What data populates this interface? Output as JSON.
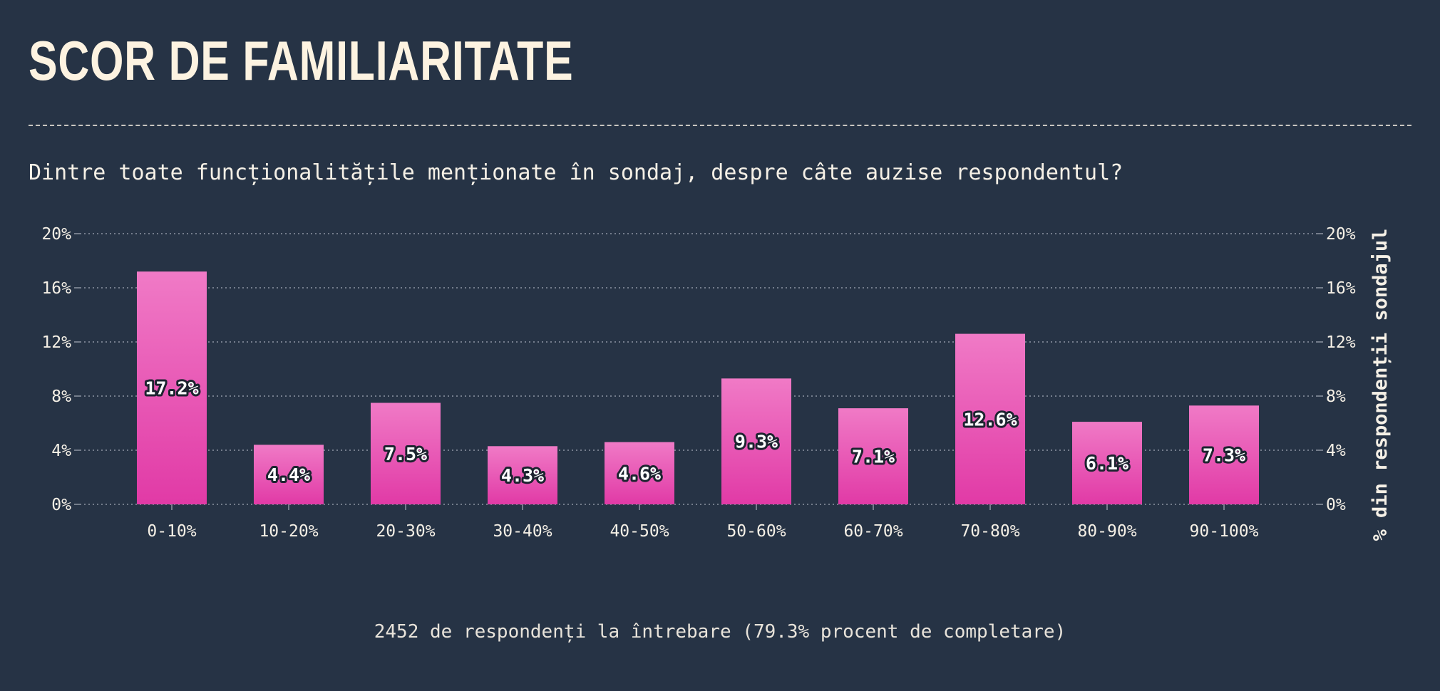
{
  "title": "SCOR DE FAMILIARITATE",
  "subtitle": "Dintre toate funcționalitățile menționate în sondaj, despre câte auzise respondentul?",
  "footer": "2452 de respondenți la întrebare (79.3% procent de completare)",
  "chart_data": {
    "type": "bar",
    "categories": [
      "0-10%",
      "10-20%",
      "20-30%",
      "30-40%",
      "40-50%",
      "50-60%",
      "60-70%",
      "70-80%",
      "80-90%",
      "90-100%"
    ],
    "values": [
      17.2,
      4.4,
      7.5,
      4.3,
      4.6,
      9.3,
      7.1,
      12.6,
      6.1,
      7.3
    ],
    "value_labels": [
      "17.2%",
      "4.4%",
      "7.5%",
      "4.3%",
      "4.6%",
      "9.3%",
      "7.1%",
      "12.6%",
      "6.1%",
      "7.3%"
    ],
    "yticks": [
      "0%",
      "4%",
      "8%",
      "12%",
      "16%",
      "20%"
    ],
    "ytick_values": [
      0,
      4,
      8,
      12,
      16,
      20
    ],
    "ylim": [
      0,
      20
    ],
    "ylabel": "% din respondenții sondajul",
    "grid": true,
    "colors": {
      "bar_top": "#f07ac6",
      "bar_bottom": "#e13aa6",
      "grid": "#8e96a3",
      "background": "#263345"
    }
  }
}
